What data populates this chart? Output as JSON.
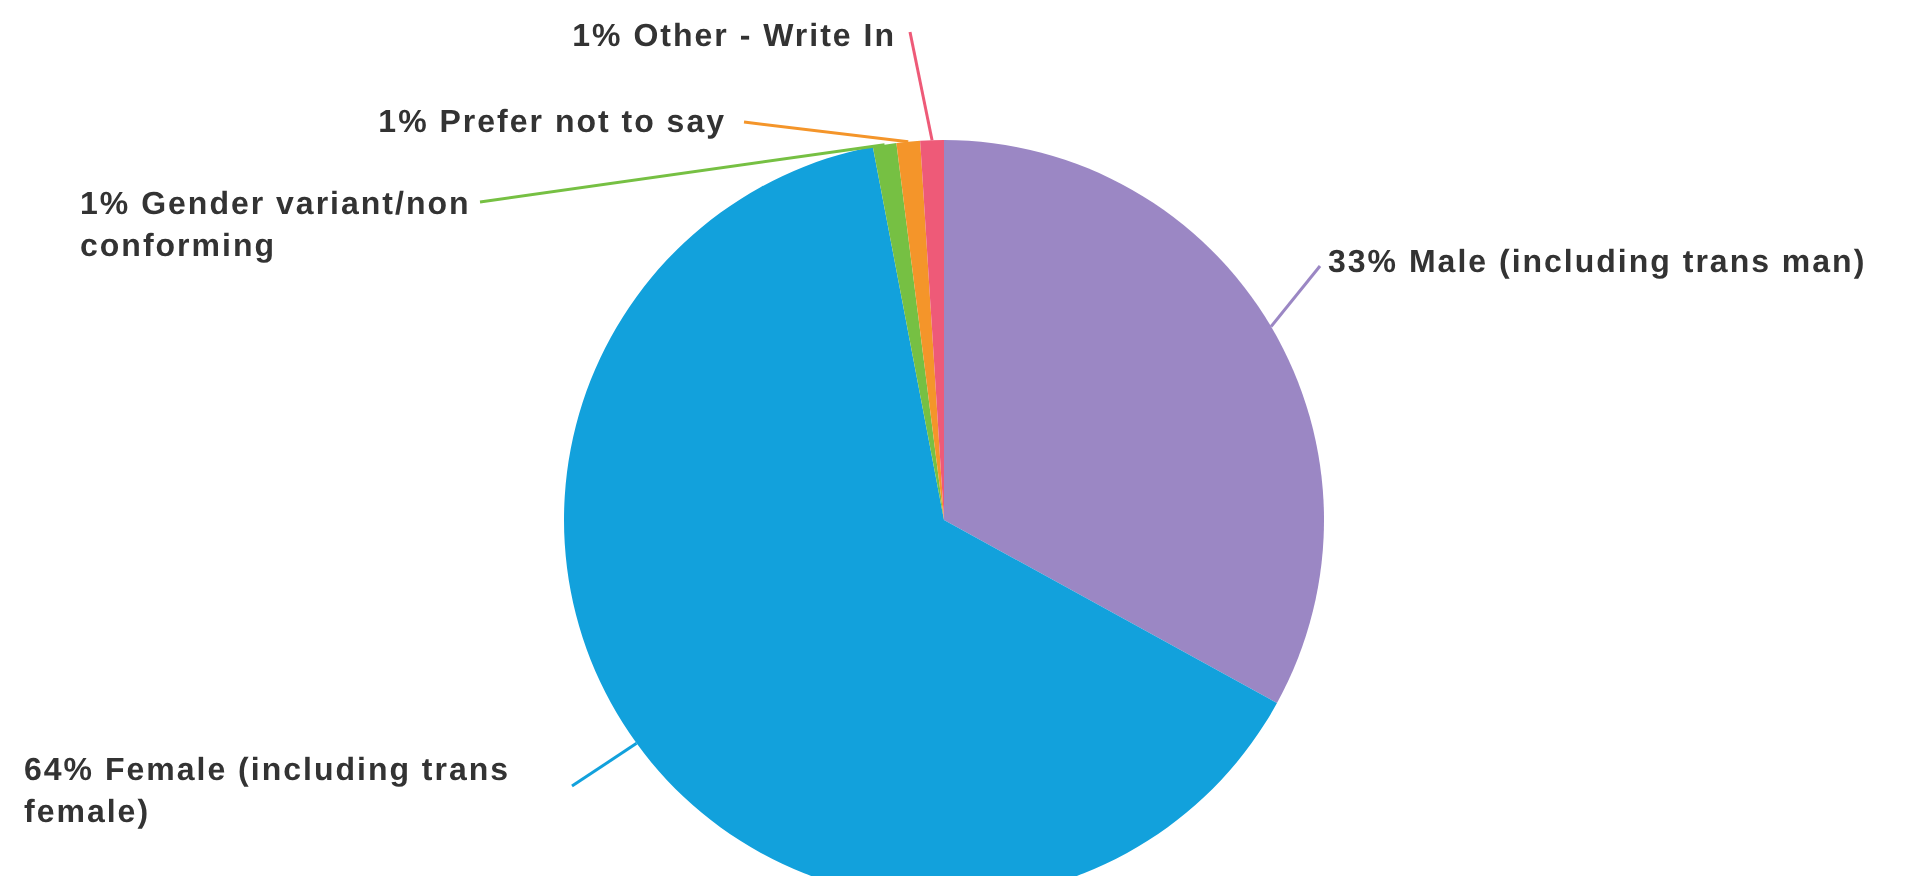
{
  "chart_data": {
    "type": "pie",
    "categories": [
      "Male (including trans man)",
      "Female (including trans female)",
      "Gender variant/non conforming",
      "Prefer not to say",
      "Other - Write In"
    ],
    "values": [
      33,
      64,
      1,
      1,
      1
    ],
    "value_labels": [
      "33%",
      "64%",
      "1%",
      "1%",
      "1%"
    ],
    "colors": [
      "#9b87c4",
      "#12a1dc",
      "#76c043",
      "#f4952a",
      "#ee5a78"
    ]
  }
}
